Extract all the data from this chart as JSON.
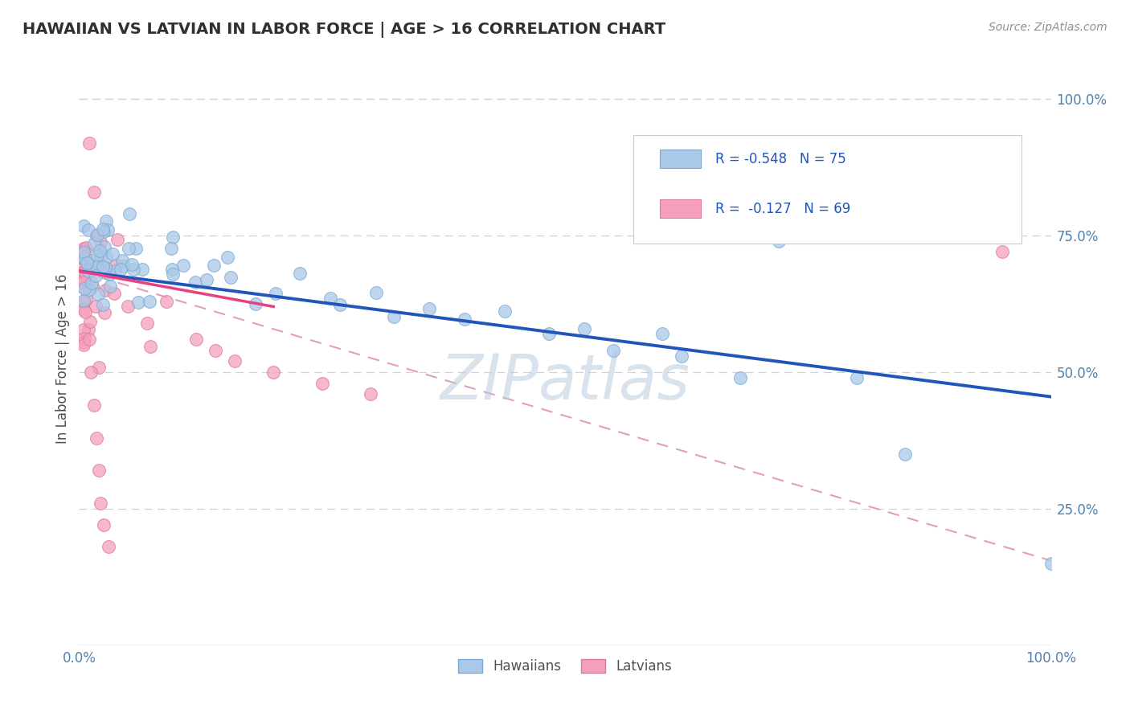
{
  "title": "HAWAIIAN VS LATVIAN IN LABOR FORCE | AGE > 16 CORRELATION CHART",
  "source": "Source: ZipAtlas.com",
  "ylabel": "In Labor Force | Age > 16",
  "xlim": [
    0.0,
    1.0
  ],
  "ylim": [
    0.0,
    1.05
  ],
  "xtick_positions": [
    0.0,
    1.0
  ],
  "xtick_labels": [
    "0.0%",
    "100.0%"
  ],
  "ytick_positions": [
    0.25,
    0.5,
    0.75,
    1.0
  ],
  "ytick_labels": [
    "25.0%",
    "50.0%",
    "75.0%",
    "100.0%"
  ],
  "blue_scatter_face": "#aac8e8",
  "blue_scatter_edge": "#7aaad0",
  "pink_scatter_face": "#f4a0bc",
  "pink_scatter_edge": "#e07898",
  "blue_line_color": "#2255bb",
  "pink_line_color": "#e84080",
  "dashed_line_color": "#e0a0b8",
  "grid_color": "#c8d4e4",
  "tick_color": "#5080b0",
  "title_color": "#303030",
  "source_color": "#909090",
  "watermark_color": "#b8cce0",
  "legend_text_color": "#2255bb",
  "legend_box_edge": "#c0ccd8",
  "blue_line_start_y": 0.685,
  "blue_line_end_y": 0.455,
  "pink_line_start_y": 0.685,
  "pink_line_end_y": 0.155,
  "dashed_line_start_y": 0.685,
  "dashed_line_end_y": 0.155
}
